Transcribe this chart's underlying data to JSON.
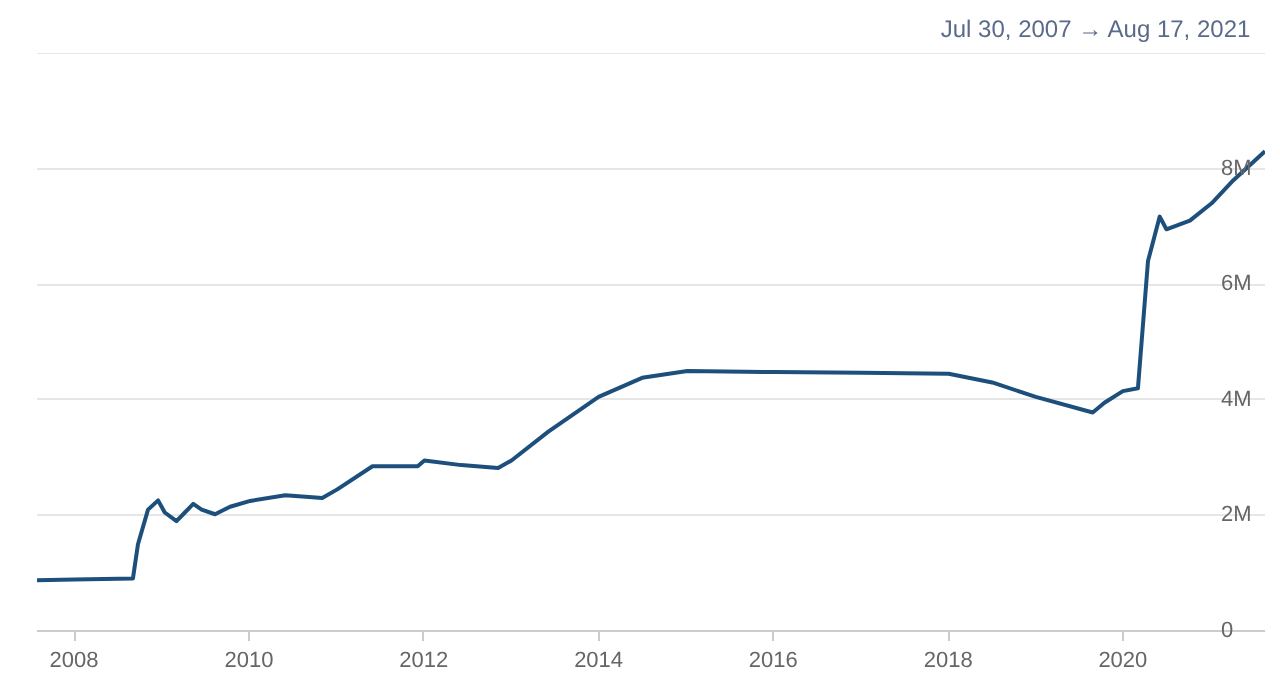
{
  "chart_data": {
    "type": "line",
    "title": "Jul 30, 2007  →  Aug 17, 2021",
    "x": [
      "2007-07-30",
      "2008-01-02",
      "2008-09-03",
      "2008-09-24",
      "2008-11-05",
      "2008-12-17",
      "2009-01-14",
      "2009-03-04",
      "2009-04-08",
      "2009-05-13",
      "2009-06-17",
      "2009-08-12",
      "2009-10-14",
      "2010-01-06",
      "2010-06-02",
      "2010-11-03",
      "2011-01-05",
      "2011-06-01",
      "2011-12-07",
      "2012-01-04",
      "2012-06-06",
      "2012-11-07",
      "2013-01-02",
      "2013-06-05",
      "2014-01-01",
      "2014-07-02",
      "2015-01-07",
      "2016-01-06",
      "2017-01-04",
      "2018-01-03",
      "2018-07-04",
      "2019-01-02",
      "2019-08-28",
      "2019-10-16",
      "2020-01-01",
      "2020-03-04",
      "2020-03-25",
      "2020-04-15",
      "2020-06-03",
      "2020-07-01",
      "2020-10-07",
      "2021-01-06",
      "2021-04-07",
      "2021-08-17"
    ],
    "series": [
      {
        "color": "#1d4f7c",
        "values": [
          880000,
          890000,
          910000,
          1500000,
          2100000,
          2260000,
          2050000,
          1900000,
          2050000,
          2200000,
          2100000,
          2020000,
          2150000,
          2250000,
          2350000,
          2300000,
          2450000,
          2850000,
          2850000,
          2950000,
          2870000,
          2820000,
          2950000,
          3450000,
          4050000,
          4380000,
          4500000,
          4480000,
          4470000,
          4450000,
          4300000,
          4050000,
          3780000,
          3950000,
          4150000,
          4200000,
          5300000,
          6400000,
          7170000,
          6950000,
          7100000,
          7400000,
          7800000,
          8300000
        ]
      }
    ],
    "ylim": [
      0,
      10000000
    ],
    "yticks": [
      {
        "value": 0,
        "label": "0"
      },
      {
        "value": 2000000,
        "label": "2M"
      },
      {
        "value": 4000000,
        "label": "4M"
      },
      {
        "value": 6000000,
        "label": "6M"
      },
      {
        "value": 8000000,
        "label": "8M"
      },
      {
        "value": 10000000,
        "label": null
      }
    ],
    "xlim": [
      "2007-07-30",
      "2021-08-17"
    ],
    "xticks": [
      {
        "value": "2008",
        "label": "2008"
      },
      {
        "value": "2010",
        "label": "2010"
      },
      {
        "value": "2012",
        "label": "2012"
      },
      {
        "value": "2014",
        "label": "2014"
      },
      {
        "value": "2016",
        "label": "2016"
      },
      {
        "value": "2018",
        "label": "2018"
      },
      {
        "value": "2020",
        "label": "2020"
      }
    ],
    "grid": "y",
    "marker": "none",
    "line_style": "solid"
  }
}
